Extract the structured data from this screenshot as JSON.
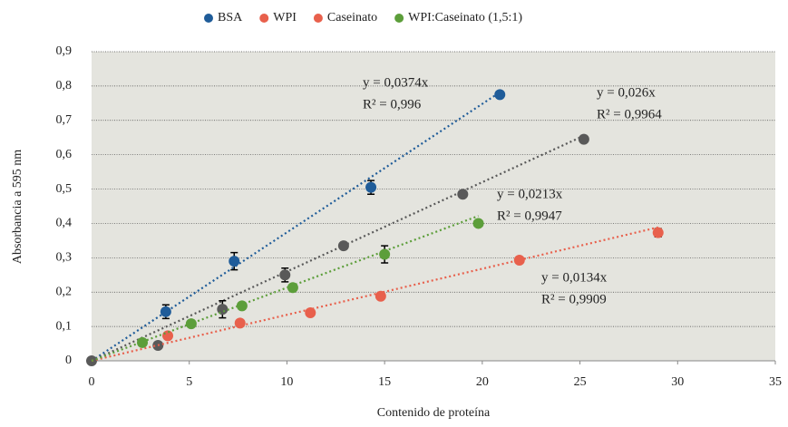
{
  "chart_data": {
    "type": "scatter",
    "xlabel": "Contenido de proteína",
    "ylabel": "Absorbancia a 595 nm",
    "xlim": [
      0,
      35
    ],
    "xticks": [
      0,
      5,
      10,
      15,
      20,
      25,
      30,
      35
    ],
    "ylim": [
      0,
      0.9
    ],
    "yticks": [
      0,
      {
        "value": 0.1,
        "label": "0,1"
      },
      {
        "value": 0.2,
        "label": "0,2"
      },
      {
        "value": 0.3,
        "label": "0,3"
      },
      {
        "value": 0.4,
        "label": "0,4"
      },
      {
        "value": 0.5,
        "label": "0,5"
      },
      {
        "value": 0.6,
        "label": "0,6"
      },
      {
        "value": 0.7,
        "label": "0,7"
      },
      {
        "value": 0.8,
        "label": "0,8"
      },
      {
        "value": 0.9,
        "label": "0,9"
      }
    ],
    "grid": true,
    "legend": "top",
    "series": [
      {
        "name": "BSA",
        "color": "#1f5c99",
        "legend_color": "#1f5c99",
        "x": [
          3.8,
          7.3,
          14.3,
          20.9
        ],
        "values": [
          0.143,
          0.29,
          0.505,
          0.775
        ],
        "errors": [
          0.02,
          0.025,
          0.02,
          null
        ],
        "trendline": {
          "slope": 0.0374,
          "label": "y = 0,0374x",
          "r2_label": "R² = 0,996"
        }
      },
      {
        "name": "WPI",
        "color": "#595959",
        "legend_color": "#e8604c",
        "x": [
          0,
          3.4,
          6.7,
          9.9,
          12.9,
          19,
          25.2
        ],
        "values": [
          0,
          0.045,
          0.15,
          0.25,
          0.335,
          0.485,
          0.645
        ],
        "errors": [
          null,
          null,
          0.025,
          0.02,
          null,
          null,
          null
        ],
        "trendline": {
          "slope": 0.026,
          "label": "y = 0,026x",
          "r2_label": "R² = 0,9964"
        }
      },
      {
        "name": "Caseinato",
        "color": "#e8604c",
        "legend_color": "#e8604c",
        "x": [
          3.9,
          7.6,
          11.2,
          14.8,
          21.9,
          29
        ],
        "values": [
          0.073,
          0.11,
          0.14,
          0.188,
          0.293,
          0.373
        ],
        "errors": [
          null,
          null,
          null,
          null,
          null,
          0.012
        ],
        "trendline": {
          "slope": 0.0134,
          "label": "y = 0,0134x",
          "r2_label": "R² = 0,9909"
        }
      },
      {
        "name": "WPI:Caseinato (1,5:1)",
        "color": "#5c9e3a",
        "legend_color": "#5c9e3a",
        "x": [
          2.6,
          5.1,
          7.7,
          10.3,
          15,
          19.8
        ],
        "values": [
          0.053,
          0.108,
          0.16,
          0.213,
          0.31,
          0.4
        ],
        "errors": [
          null,
          null,
          null,
          null,
          0.025,
          null
        ],
        "trendline": {
          "slope": 0.0213,
          "label": "y = 0,0213x",
          "r2_label": "R² = 0,9947"
        }
      }
    ]
  }
}
